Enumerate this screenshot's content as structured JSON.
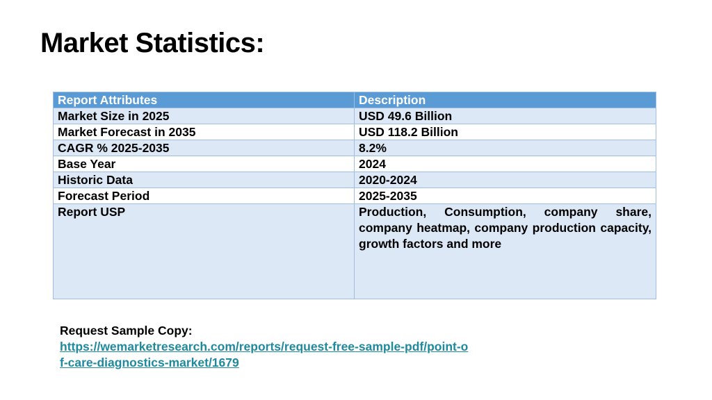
{
  "slide": {
    "title": "Market Statistics:"
  },
  "table": {
    "headers": [
      "Report Attributes",
      "Description"
    ],
    "rows": [
      [
        "Market Size in 2025",
        "USD 49.6 Billion"
      ],
      [
        "Market Forecast in 2035",
        "USD 118.2 Billion"
      ],
      [
        "CAGR % 2025-2035",
        "8.2%"
      ],
      [
        "Base Year",
        "2024"
      ],
      [
        "Historic Data",
        "2020-2024"
      ],
      [
        "Forecast Period",
        "2025-2035"
      ],
      [
        "Report USP",
        "Production, Consumption, company share, company heatmap, company production capacity, growth factors and more"
      ]
    ]
  },
  "request": {
    "label": "Request Sample Copy:",
    "link_text": "https://wemarketresearch.com/reports/request-free-sample-pdf/point-of-care-diagnostics-market/1679"
  },
  "colors": {
    "header_bg": "#5b9bd5",
    "row_shade": "#dce8f5",
    "link": "#1f8a9e"
  }
}
